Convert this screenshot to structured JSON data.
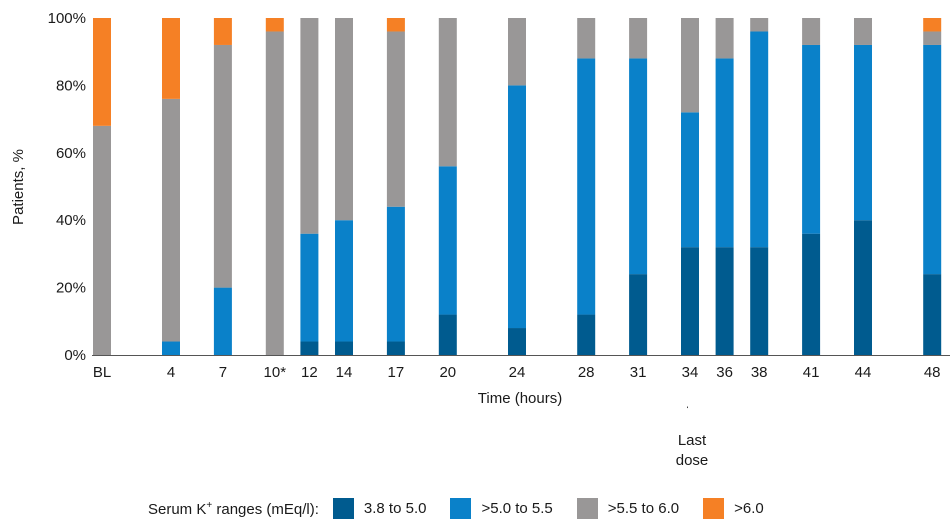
{
  "chart_data": {
    "type": "bar",
    "stacked": true,
    "categories": [
      "BL",
      "4",
      "7",
      "10*",
      "12",
      "14",
      "17",
      "20",
      "24",
      "28",
      "31",
      "34",
      "36",
      "38",
      "41",
      "44",
      "48"
    ],
    "series": [
      {
        "name": "3.8 to 5.0",
        "color": "#005b8f",
        "values": [
          0,
          0,
          0,
          0,
          4,
          4,
          4,
          12,
          8,
          12,
          24,
          32,
          32,
          32,
          36,
          40,
          24
        ]
      },
      {
        "name": ">5.0 to 5.5",
        "color": "#0a81c9",
        "values": [
          0,
          4,
          20,
          0,
          32,
          36,
          40,
          44,
          72,
          76,
          64,
          40,
          56,
          64,
          56,
          52,
          68
        ]
      },
      {
        "name": ">5.5 to 6.0",
        "color": "#999797",
        "values": [
          68,
          72,
          72,
          96,
          64,
          60,
          52,
          44,
          20,
          12,
          12,
          28,
          12,
          4,
          8,
          8,
          4
        ]
      },
      {
        "name": ">6.0",
        "color": "#f58025",
        "values": [
          32,
          24,
          8,
          4,
          0,
          0,
          4,
          0,
          0,
          0,
          0,
          0,
          0,
          0,
          0,
          0,
          4
        ]
      }
    ],
    "xlabel": "Time (hours)",
    "ylabel": "Patients, %",
    "ylim": [
      0,
      100
    ],
    "yticks": [
      "0%",
      "20%",
      "40%",
      "60%",
      "80%",
      "100%"
    ],
    "legend": {
      "title_prefix": "Serum K",
      "title_sup": "+",
      "title_suffix": " ranges (mEq/l):",
      "placement": "bottom"
    },
    "annotation": {
      "category": "34",
      "line1": "Last",
      "line2": "dose"
    }
  }
}
